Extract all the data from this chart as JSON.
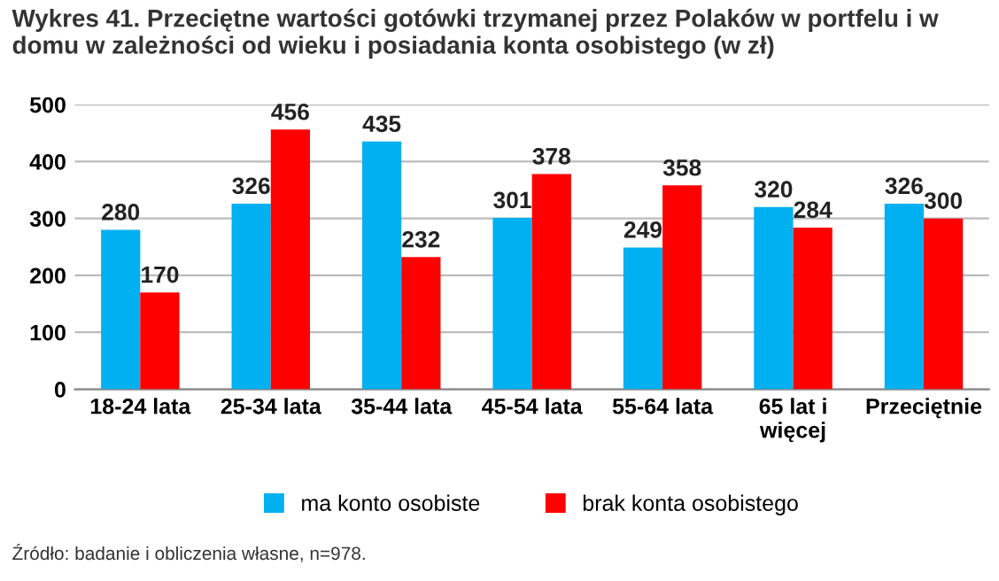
{
  "chart_data": {
    "type": "bar",
    "title": "Wykres 41. Przeciętne wartości gotówki trzymanej przez Polaków w portfelu i w\ndomu w zależności od wieku i posiadania konta osobistego (w zł)",
    "categories": [
      "18-24 lata",
      "25-34 lata",
      "35-44 lata",
      "45-54 lata",
      "55-64 lata",
      "65 lat i\nwięcej",
      "Przeciętnie"
    ],
    "series": [
      {
        "name": "ma konto osobiste",
        "color": "#00b0f0",
        "values": [
          280,
          326,
          435,
          301,
          249,
          320,
          326
        ]
      },
      {
        "name": "brak konta osobistego",
        "color": "#ff0000",
        "values": [
          170,
          456,
          232,
          378,
          358,
          284,
          300
        ]
      }
    ],
    "ylim": [
      0,
      500
    ],
    "yticks": [
      0,
      100,
      200,
      300,
      400,
      500
    ],
    "grid": "y",
    "legend": "bottom",
    "data_labels": true,
    "annotations": [
      "Źródło: badanie i obliczenia własne, n=978."
    ]
  }
}
